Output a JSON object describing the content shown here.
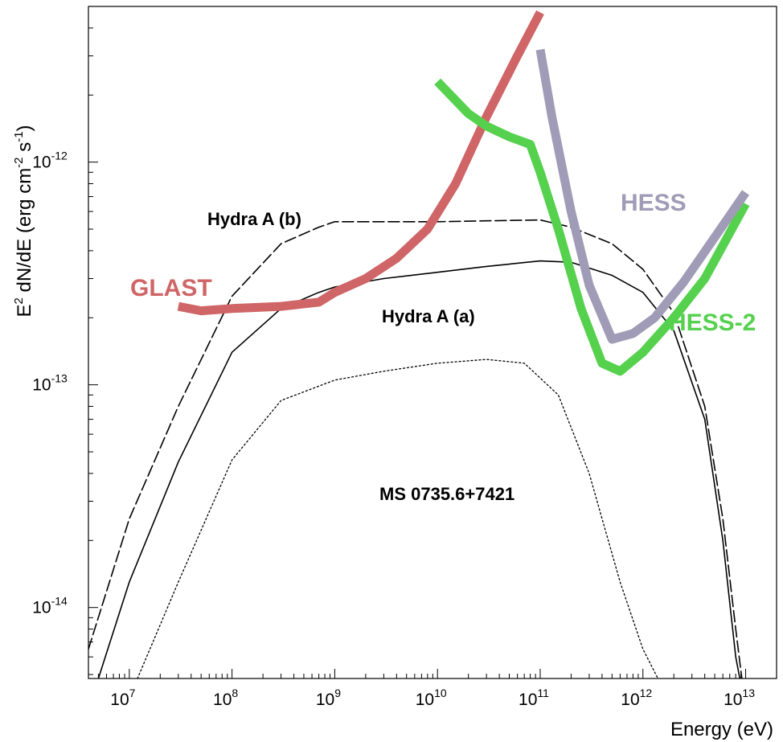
{
  "chart_data": {
    "type": "line",
    "title": "",
    "xlabel": "Energy (eV)",
    "ylabel": {
      "parts": [
        "E",
        "2",
        " dN/dE (erg cm",
        "-2",
        " s",
        "-1",
        ")"
      ]
    },
    "x_scale": "log",
    "y_scale": "log",
    "xlim": [
      4000000.0,
      20000000000000.0
    ],
    "ylim": [
      4.8e-15,
      5e-12
    ],
    "grid": false,
    "legend": "none",
    "x_ticks": [
      {
        "value": 10000000.0,
        "base": "10",
        "exp": "7"
      },
      {
        "value": 100000000.0,
        "base": "10",
        "exp": "8"
      },
      {
        "value": 1000000000.0,
        "base": "10",
        "exp": "9"
      },
      {
        "value": 10000000000.0,
        "base": "10",
        "exp": "10"
      },
      {
        "value": 100000000000.0,
        "base": "10",
        "exp": "11"
      },
      {
        "value": 1000000000000.0,
        "base": "10",
        "exp": "12"
      },
      {
        "value": 10000000000000.0,
        "base": "10",
        "exp": "13"
      }
    ],
    "y_ticks": [
      {
        "value": 1e-14,
        "base": "10",
        "exp": "-14"
      },
      {
        "value": 1e-13,
        "base": "10",
        "exp": "-13"
      },
      {
        "value": 1e-12,
        "base": "10",
        "exp": "-12"
      }
    ],
    "series": [
      {
        "name": "Hydra A (b)",
        "color": "#000000",
        "style": "dashed",
        "width": 1.6,
        "x": [
          4000000.0,
          10000000.0,
          30000000.0,
          100000000.0,
          300000000.0,
          700000000.0,
          1000000000.0,
          3000000000.0,
          10000000000.0,
          30000000000.0,
          100000000000.0,
          200000000000.0,
          500000000000.0,
          1000000000000.0,
          2000000000000.0,
          4000000000000.0,
          6000000000000.0,
          8000000000000.0,
          10000000000000.0
        ],
        "y": [
          6.5e-15,
          2.5e-14,
          8e-14,
          2.5e-13,
          4.3e-13,
          5.1e-13,
          5.4e-13,
          5.4e-13,
          5.4e-13,
          5.45e-13,
          5.5e-13,
          5.1e-13,
          4.3e-13,
          3.3e-13,
          2.1e-13,
          8e-14,
          2.5e-14,
          8e-15,
          3.5e-15
        ]
      },
      {
        "name": "Hydra A (a)",
        "color": "#000000",
        "style": "solid",
        "width": 1.6,
        "x": [
          5000000.0,
          10000000.0,
          30000000.0,
          100000000.0,
          300000000.0,
          700000000.0,
          1000000000.0,
          3000000000.0,
          10000000000.0,
          30000000000.0,
          100000000000.0,
          200000000000.0,
          500000000000.0,
          1000000000000.0,
          2000000000000.0,
          4000000000000.0,
          6000000000000.0,
          8000000000000.0,
          10000000000000.0
        ],
        "y": [
          4.8e-15,
          1.3e-14,
          4.5e-14,
          1.4e-13,
          2.2e-13,
          2.6e-13,
          2.75e-13,
          3e-13,
          3.2e-13,
          3.4e-13,
          3.6e-13,
          3.55e-13,
          3.1e-13,
          2.6e-13,
          1.75e-13,
          7e-14,
          2e-14,
          6e-15,
          3.5e-15
        ]
      },
      {
        "name": "MS 0735.6+7421",
        "color": "#000000",
        "style": "dotted",
        "width": 1.3,
        "x": [
          12000000.0,
          30000000.0,
          100000000.0,
          300000000.0,
          1000000000.0,
          3000000000.0,
          10000000000.0,
          30000000000.0,
          70000000000.0,
          150000000000.0,
          300000000000.0,
          600000000000.0,
          1000000000000.0,
          1400000000000.0
        ],
        "y": [
          4.8e-15,
          1.3e-14,
          4.6e-14,
          8.5e-14,
          1.05e-13,
          1.15e-13,
          1.25e-13,
          1.3e-13,
          1.25e-13,
          9e-14,
          4e-14,
          1.3e-14,
          6.5e-15,
          4.8e-15
        ]
      },
      {
        "name": "GLAST",
        "color": "#cf6566",
        "style": "solid",
        "width": 11,
        "x": [
          30000000.0,
          50000000.0,
          100000000.0,
          300000000.0,
          700000000.0,
          1000000000.0,
          2000000000.0,
          4000000000.0,
          8000000000.0,
          15000000000.0,
          30000000000.0,
          60000000000.0,
          100000000000.0
        ],
        "y": [
          2.25e-13,
          2.15e-13,
          2.2e-13,
          2.25e-13,
          2.35e-13,
          2.6e-13,
          3e-13,
          3.7e-13,
          5e-13,
          8e-13,
          1.6e-12,
          3e-12,
          4.7e-12
        ]
      },
      {
        "name": "HESS-2",
        "color": "#55d14e",
        "style": "solid",
        "width": 11,
        "x": [
          10000000000.0,
          20000000000.0,
          30000000000.0,
          50000000000.0,
          80000000000.0,
          100000000000.0,
          150000000000.0,
          250000000000.0,
          400000000000.0,
          600000000000.0,
          1000000000000.0,
          2000000000000.0,
          4000000000000.0,
          10000000000000.0
        ],
        "y": [
          2.3e-12,
          1.65e-12,
          1.45e-12,
          1.3e-12,
          1.2e-12,
          9e-13,
          5e-13,
          2.2e-13,
          1.25e-13,
          1.15e-13,
          1.4e-13,
          2e-13,
          3e-13,
          6.5e-13
        ]
      },
      {
        "name": "HESS",
        "color": "#a09cb7",
        "style": "solid",
        "width": 11,
        "x": [
          100000000000.0,
          130000000000.0,
          200000000000.0,
          300000000000.0,
          500000000000.0,
          800000000000.0,
          1300000000000.0,
          2500000000000.0,
          5000000000000.0,
          10000000000000.0
        ],
        "y": [
          3.2e-12,
          1.6e-12,
          6e-13,
          2.8e-13,
          1.6e-13,
          1.7e-13,
          2e-13,
          2.9e-13,
          4.6e-13,
          7.3e-13
        ]
      }
    ],
    "annotations": [
      {
        "text": "Hydra A (b)",
        "color": "#000000",
        "size": 22
      },
      {
        "text": "Hydra A (a)",
        "color": "#000000",
        "size": 22
      },
      {
        "text": "MS 0735.6+7421",
        "color": "#000000",
        "size": 22
      },
      {
        "text": "GLAST",
        "color": "#cf6566",
        "size": 30
      },
      {
        "text": "HESS",
        "color": "#a09cb7",
        "size": 30
      },
      {
        "text": "HESS-2",
        "color": "#55d14e",
        "size": 30
      }
    ]
  }
}
